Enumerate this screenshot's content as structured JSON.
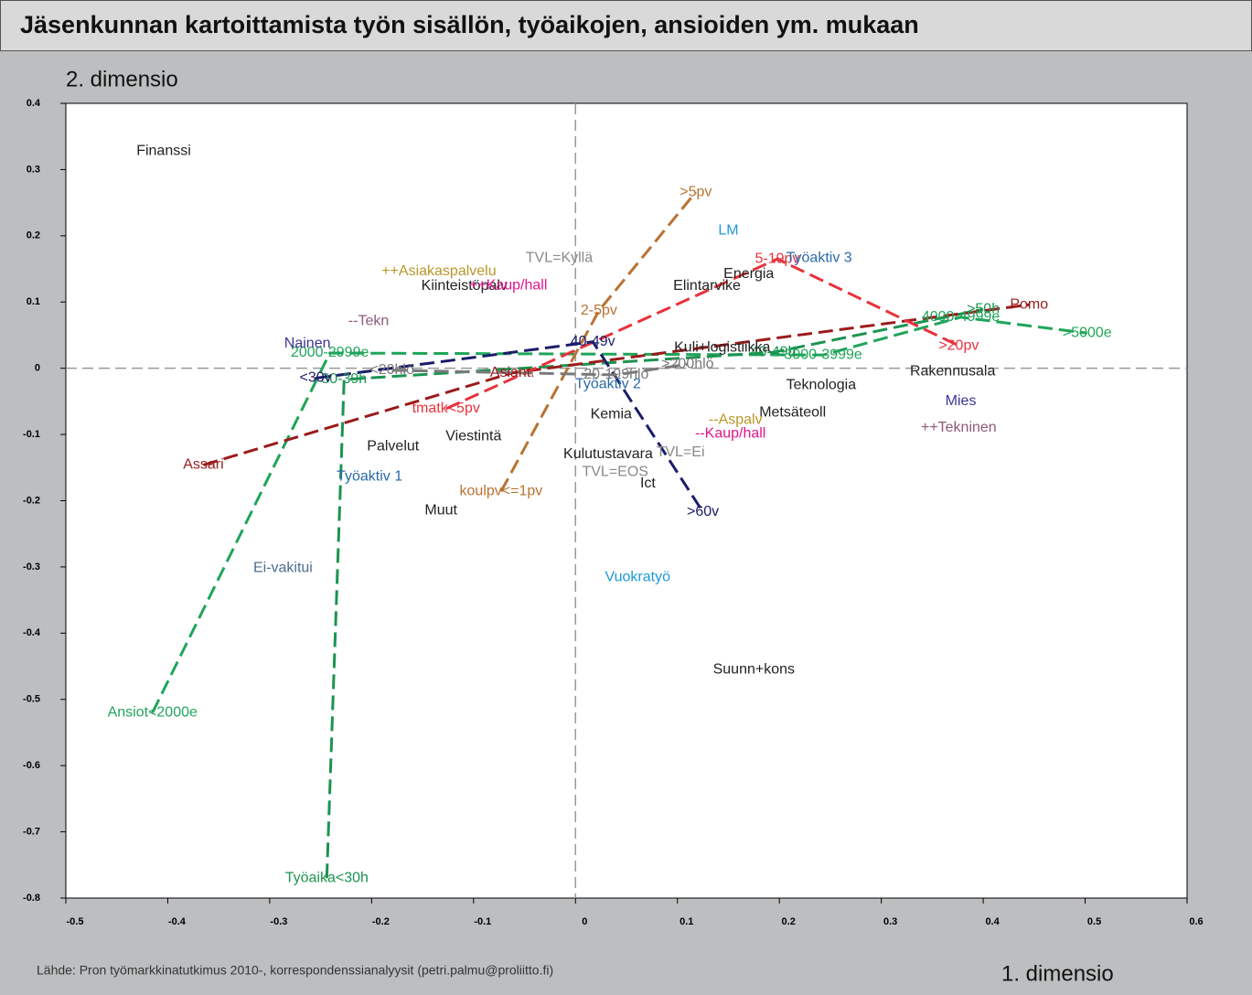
{
  "chart_data": {
    "type": "scatter",
    "title": "Jäsenkunnan kartoittamista työn sisällön, työaikojen, ansioiden ym. mukaan",
    "ylabel": "2. dimensio",
    "xlabel": "1. dimensio",
    "source": "Lähde: Pron työmarkkinatutkimus 2010-, korrespondenssianalyysit (petri.palmu@proliitto.fi)",
    "xlim": [
      -0.5,
      0.6
    ],
    "xticks": [
      -0.5,
      -0.4,
      -0.3,
      -0.2,
      -0.1,
      0,
      0.1,
      0.2,
      0.3,
      0.4,
      0.5,
      0.6
    ],
    "ylim": [
      -0.8,
      0.4
    ],
    "yticks": [
      0.4,
      0.3,
      0.2,
      0.1,
      0,
      -0.1,
      -0.2,
      -0.3,
      -0.4,
      -0.5,
      -0.6,
      -0.7,
      -0.8
    ],
    "zero_lines": true,
    "series": [
      {
        "line": true,
        "color": "#1fa55a",
        "labels": [
          "Ansiot<2000e",
          "2000-2999e",
          "3000-3999e",
          "4000-4999e",
          ">5000e"
        ],
        "x": [
          -0.415,
          -0.241,
          0.243,
          0.378,
          0.502
        ],
        "y": [
          -0.52,
          0.023,
          0.02,
          0.077,
          0.053
        ]
      },
      {
        "line": true,
        "color": "#1b9450",
        "labels": [
          "Työaika<30h",
          "30-39h",
          "40-49h",
          ">50h"
        ],
        "x": [
          -0.244,
          -0.227,
          0.194,
          0.4
        ],
        "y": [
          -0.77,
          -0.017,
          0.024,
          0.089
        ]
      },
      {
        "line": true,
        "color": "#9b1b1b",
        "labels": [
          "Assari",
          "Asiant.",
          "Pomo"
        ],
        "x": [
          -0.365,
          -0.062,
          0.445
        ],
        "y": [
          -0.146,
          -0.007,
          0.096
        ]
      },
      {
        "line": true,
        "color": "#e8323c",
        "labels": [
          "tmatk<5pv",
          "5-19pv",
          ">20pv"
        ],
        "x": [
          -0.127,
          0.198,
          0.376
        ],
        "y": [
          -0.061,
          0.165,
          0.034
        ]
      },
      {
        "line": true,
        "color": "#b87333",
        "labels": [
          "koulpv<=1pv",
          "2-5pv",
          ">5pv"
        ],
        "x": [
          -0.073,
          0.023,
          0.118
        ],
        "y": [
          -0.186,
          0.087,
          0.266
        ]
      },
      {
        "line": true,
        "color": "#1c1c6b",
        "labels": [
          "<30v",
          "40-49v",
          ">60v"
        ],
        "x": [
          -0.255,
          0.017,
          0.125
        ],
        "y": [
          -0.015,
          0.04,
          -0.217
        ]
      },
      {
        "line": true,
        "color": "#7a7a7a",
        "labels": [
          "<20hlö",
          "20-199hlö",
          ">200hlö"
        ],
        "x": [
          -0.18,
          0.04,
          0.11
        ],
        "y": [
          -0.003,
          -0.01,
          0.006
        ]
      },
      {
        "line": false,
        "color": "#222222",
        "labels": [
          "Finanssi",
          "Kiinteistöpalv",
          "Energia",
          "Elintarvike",
          "Kuli+logistiikka",
          "Teknologia",
          "Rakennusala",
          "Metsäteoll",
          "Kemia",
          "Kulutustavara",
          "Ict",
          "Viestintä",
          "Palvelut",
          "Muut",
          "Suunn+kons"
        ],
        "x": [
          -0.404,
          -0.109,
          0.17,
          0.129,
          0.144,
          0.241,
          0.37,
          0.213,
          0.035,
          0.032,
          0.071,
          -0.1,
          -0.179,
          -0.132,
          0.175
        ],
        "y": [
          0.328,
          0.124,
          0.142,
          0.124,
          0.031,
          -0.026,
          -0.005,
          -0.067,
          -0.07,
          -0.13,
          -0.174,
          -0.103,
          -0.118,
          -0.215,
          -0.455
        ]
      },
      {
        "line": false,
        "color": "#b8972a",
        "labels": [
          "++Asiakaspalvelu",
          "--Aspalv"
        ],
        "x": [
          -0.134,
          0.157
        ],
        "y": [
          0.146,
          -0.078
        ]
      },
      {
        "line": false,
        "color": "#e0158d",
        "labels": [
          "++Kaup/hall",
          "--Kaup/hall"
        ],
        "x": [
          -0.066,
          0.152
        ],
        "y": [
          0.125,
          -0.099
        ]
      },
      {
        "line": false,
        "color": "#8e5a77",
        "labels": [
          "--Tekn",
          "++Tekninen"
        ],
        "x": [
          -0.203,
          0.376
        ],
        "y": [
          0.071,
          -0.09
        ]
      },
      {
        "line": false,
        "color": "#3b3598",
        "labels": [
          "Nainen",
          "Mies"
        ],
        "x": [
          -0.263,
          0.378
        ],
        "y": [
          0.037,
          -0.05
        ]
      },
      {
        "line": false,
        "color": "#8a8a8a",
        "labels": [
          "TVL=Kyllä",
          "TVL=Ei",
          "TVL=EOS"
        ],
        "x": [
          -0.016,
          0.103,
          0.039
        ],
        "y": [
          0.166,
          -0.127,
          -0.157
        ]
      },
      {
        "line": false,
        "color": "#2a6aa8",
        "labels": [
          "Työaktiv 1",
          "Työaktiv 2",
          "Työaktiv 3"
        ],
        "x": [
          -0.202,
          0.032,
          0.239
        ],
        "y": [
          -0.164,
          -0.024,
          0.166
        ]
      },
      {
        "line": false,
        "color": "#1d9ad9",
        "labels": [
          "LM",
          "Vuokratyö"
        ],
        "x": [
          0.15,
          0.061
        ],
        "y": [
          0.208,
          -0.316
        ]
      },
      {
        "line": false,
        "color": "#4b6d8e",
        "labels": [
          "Ei-vakitui"
        ],
        "x": [
          -0.287
        ],
        "y": [
          -0.302
        ]
      }
    ]
  }
}
